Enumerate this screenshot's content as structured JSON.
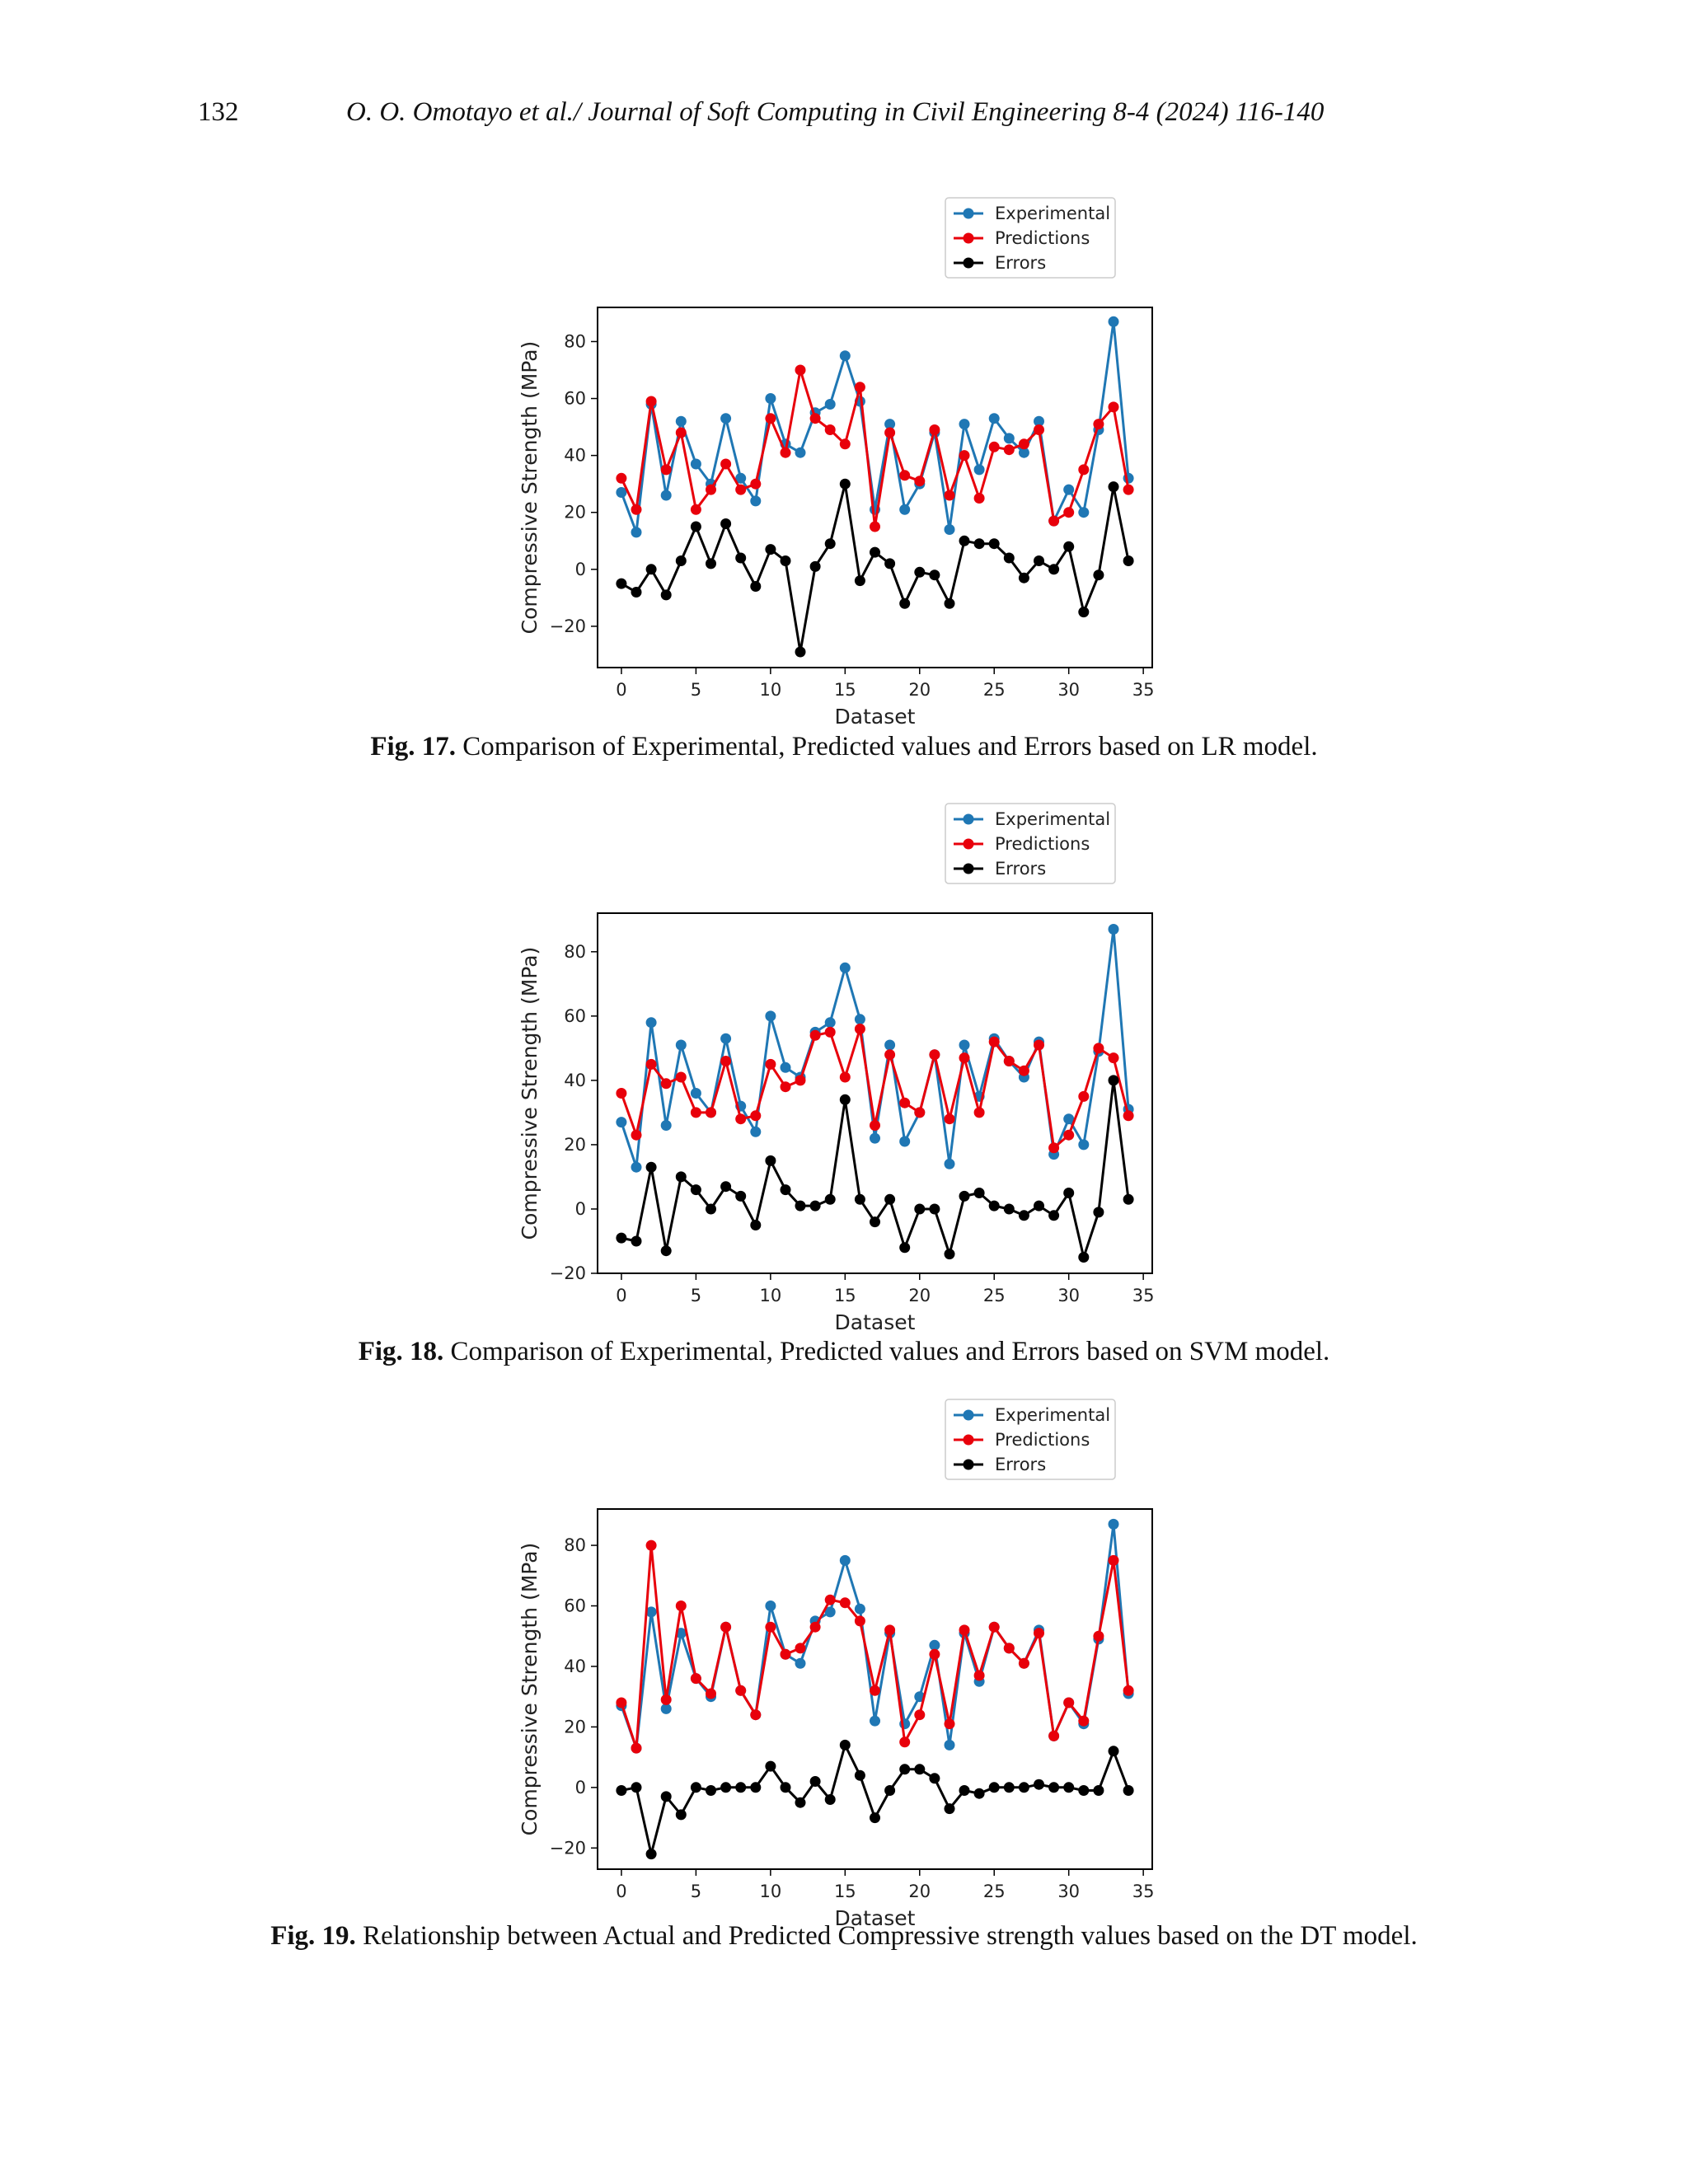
{
  "header": {
    "page_number": "132",
    "running_head": "O. O. Omotayo et al./ Journal of Soft Computing in Civil Engineering 8-4 (2024) 116-140"
  },
  "figures": [
    {
      "label": "Fig. 17.",
      "caption": "Comparison of Experimental, Predicted values and Errors based on LR model."
    },
    {
      "label": "Fig. 18.",
      "caption": "Comparison of Experimental, Predicted values and Errors based on SVM model."
    },
    {
      "label": "Fig. 19.",
      "caption": "Relationship between Actual and Predicted Compressive strength values based on the DT model."
    }
  ],
  "chart_data": [
    {
      "type": "line",
      "xlabel": "Dataset",
      "ylabel": "Compressive Strength (MPa)",
      "xlim": [
        -1.6,
        35.6
      ],
      "ylim": [
        -34.5,
        92
      ],
      "xticks": [
        0,
        5,
        10,
        15,
        20,
        25,
        30,
        35
      ],
      "yticks": [
        -20,
        0,
        20,
        40,
        60,
        80
      ],
      "legend": "top-right (outside, above plot)",
      "grid": false,
      "x": [
        0,
        1,
        2,
        3,
        4,
        5,
        6,
        7,
        8,
        9,
        10,
        11,
        12,
        13,
        14,
        15,
        16,
        17,
        18,
        19,
        20,
        21,
        22,
        23,
        24,
        25,
        26,
        27,
        28,
        29,
        30,
        31,
        32,
        33,
        34
      ],
      "series": [
        {
          "name": "Experimental",
          "color": "#1f77b4",
          "values": [
            27,
            13,
            58,
            26,
            52,
            37,
            30,
            53,
            32,
            24,
            60,
            44,
            41,
            55,
            58,
            75,
            59,
            21,
            51,
            21,
            30,
            48,
            14,
            51,
            35,
            53,
            46,
            41,
            52,
            17,
            28,
            20,
            49,
            87,
            32
          ]
        },
        {
          "name": "Predictions",
          "color": "#e8000b",
          "values": [
            32,
            21,
            59,
            35,
            48,
            21,
            28,
            37,
            28,
            30,
            53,
            41,
            70,
            53,
            49,
            44,
            64,
            15,
            48,
            33,
            31,
            49,
            26,
            40,
            25,
            43,
            42,
            44,
            49,
            17,
            20,
            35,
            51,
            57,
            28
          ]
        },
        {
          "name": "Errors",
          "color": "#000000",
          "values": [
            -5,
            -8,
            0,
            -9,
            3,
            15,
            2,
            16,
            4,
            -6,
            7,
            3,
            -29,
            1,
            9,
            30,
            -4,
            6,
            2,
            -12,
            -1,
            -2,
            -12,
            10,
            9,
            9,
            4,
            -3,
            3,
            0,
            8,
            -15,
            -2,
            29,
            3
          ]
        }
      ]
    },
    {
      "type": "line",
      "xlabel": "Dataset",
      "ylabel": "Compressive Strength (MPa)",
      "xlim": [
        -1.6,
        35.6
      ],
      "ylim": [
        -20,
        92
      ],
      "xticks": [
        0,
        5,
        10,
        15,
        20,
        25,
        30,
        35
      ],
      "yticks": [
        -20,
        0,
        20,
        40,
        60,
        80
      ],
      "legend": "top-right (outside, above plot)",
      "grid": false,
      "x": [
        0,
        1,
        2,
        3,
        4,
        5,
        6,
        7,
        8,
        9,
        10,
        11,
        12,
        13,
        14,
        15,
        16,
        17,
        18,
        19,
        20,
        21,
        22,
        23,
        24,
        25,
        26,
        27,
        28,
        29,
        30,
        31,
        32,
        33,
        34
      ],
      "series": [
        {
          "name": "Experimental",
          "color": "#1f77b4",
          "values": [
            27,
            13,
            58,
            26,
            51,
            36,
            30,
            53,
            32,
            24,
            60,
            44,
            41,
            55,
            58,
            75,
            59,
            22,
            51,
            21,
            30,
            48,
            14,
            51,
            35,
            53,
            46,
            41,
            52,
            17,
            28,
            20,
            49,
            87,
            31
          ]
        },
        {
          "name": "Predictions",
          "color": "#e8000b",
          "values": [
            36,
            23,
            45,
            39,
            41,
            30,
            30,
            46,
            28,
            29,
            45,
            38,
            40,
            54,
            55,
            41,
            56,
            26,
            48,
            33,
            30,
            48,
            28,
            47,
            30,
            52,
            46,
            43,
            51,
            19,
            23,
            35,
            50,
            47,
            29
          ]
        },
        {
          "name": "Errors",
          "color": "#000000",
          "values": [
            -9,
            -10,
            13,
            -13,
            10,
            6,
            0,
            7,
            4,
            -5,
            15,
            6,
            1,
            1,
            3,
            34,
            3,
            -4,
            3,
            -12,
            0,
            0,
            -14,
            4,
            5,
            1,
            0,
            -2,
            1,
            -2,
            5,
            -15,
            -1,
            40,
            3
          ]
        }
      ]
    },
    {
      "type": "line",
      "xlabel": "Dataset",
      "ylabel": "Compressive Strength (MPa)",
      "xlim": [
        -1.6,
        35.6
      ],
      "ylim": [
        -27,
        92
      ],
      "xticks": [
        0,
        5,
        10,
        15,
        20,
        25,
        30,
        35
      ],
      "yticks": [
        -20,
        0,
        20,
        40,
        60,
        80
      ],
      "legend": "top-right (outside, above plot)",
      "grid": false,
      "x": [
        0,
        1,
        2,
        3,
        4,
        5,
        6,
        7,
        8,
        9,
        10,
        11,
        12,
        13,
        14,
        15,
        16,
        17,
        18,
        19,
        20,
        21,
        22,
        23,
        24,
        25,
        26,
        27,
        28,
        29,
        30,
        31,
        32,
        33,
        34
      ],
      "series": [
        {
          "name": "Experimental",
          "color": "#1f77b4",
          "values": [
            27,
            13,
            58,
            26,
            51,
            36,
            30,
            53,
            32,
            24,
            60,
            44,
            41,
            55,
            58,
            75,
            59,
            22,
            51,
            21,
            30,
            47,
            14,
            51,
            35,
            53,
            46,
            41,
            52,
            17,
            28,
            21,
            49,
            87,
            31
          ]
        },
        {
          "name": "Predictions",
          "color": "#e8000b",
          "values": [
            28,
            13,
            80,
            29,
            60,
            36,
            31,
            53,
            32,
            24,
            53,
            44,
            46,
            53,
            62,
            61,
            55,
            32,
            52,
            15,
            24,
            44,
            21,
            52,
            37,
            53,
            46,
            41,
            51,
            17,
            28,
            22,
            50,
            75,
            32
          ]
        },
        {
          "name": "Errors",
          "color": "#000000",
          "values": [
            -1,
            0,
            -22,
            -3,
            -9,
            0,
            -1,
            0,
            0,
            0,
            7,
            0,
            -5,
            2,
            -4,
            14,
            4,
            -10,
            -1,
            6,
            6,
            3,
            -7,
            -1,
            -2,
            0,
            0,
            0,
            1,
            0,
            0,
            -1,
            -1,
            12,
            -1
          ]
        }
      ]
    }
  ]
}
